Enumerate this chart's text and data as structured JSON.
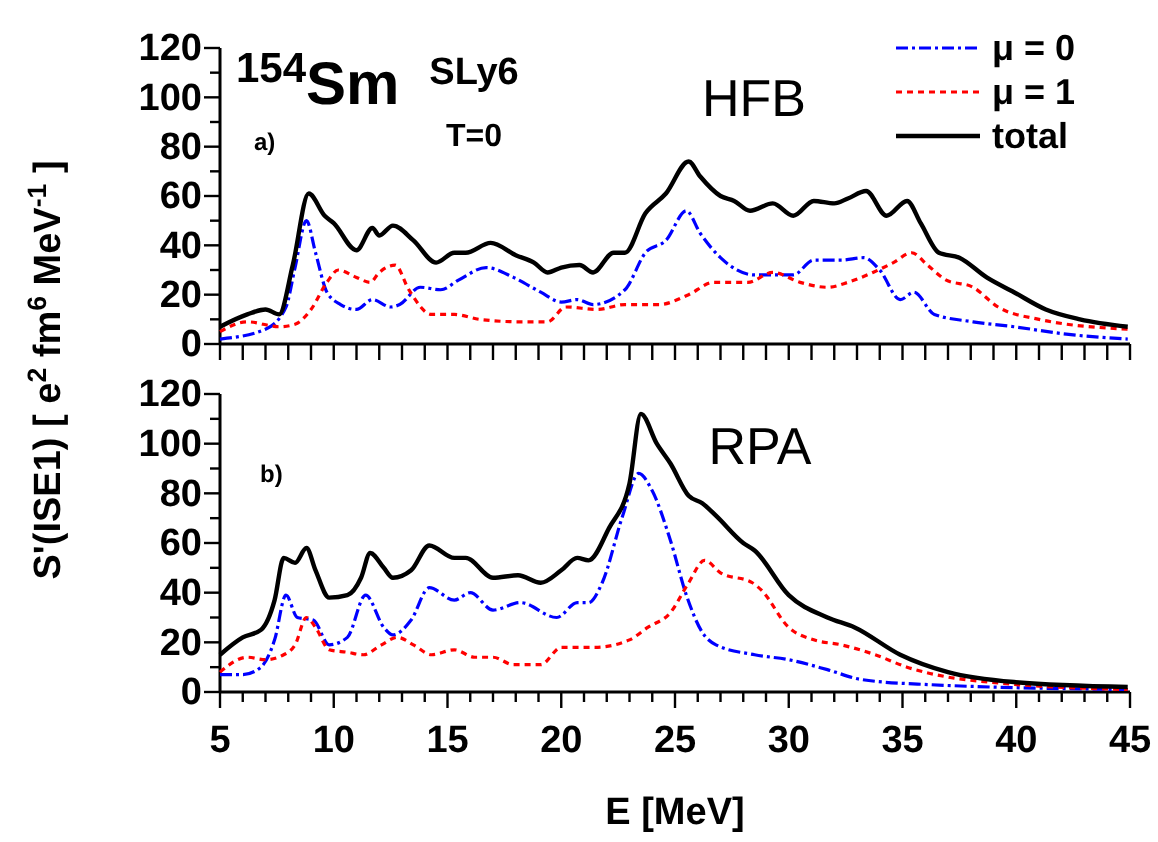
{
  "chart_data": [
    {
      "type": "line",
      "ylabel": "S'(ISE1)  [ e$^{2}$ fm$^{6}$ MeV$^{-1}$ ]",
      "annotations": [
        "$^{154}$Sm",
        "SLy6",
        "T=0",
        "HFB",
        "a)"
      ],
      "xlim": [
        5,
        45
      ],
      "xticks": [
        {
          "value": 5,
          "label": null
        },
        {
          "value": 6,
          "label": null
        },
        {
          "value": 7,
          "label": null
        },
        {
          "value": 8,
          "label": null
        },
        {
          "value": 9,
          "label": null
        },
        {
          "value": 10,
          "label": null
        },
        {
          "value": 11,
          "label": null
        },
        {
          "value": 12,
          "label": null
        },
        {
          "value": 13,
          "label": null
        },
        {
          "value": 14,
          "label": null
        },
        {
          "value": 15,
          "label": null
        },
        {
          "value": 16,
          "label": null
        },
        {
          "value": 17,
          "label": null
        },
        {
          "value": 18,
          "label": null
        },
        {
          "value": 19,
          "label": null
        },
        {
          "value": 20,
          "label": null
        },
        {
          "value": 21,
          "label": null
        },
        {
          "value": 22,
          "label": null
        },
        {
          "value": 23,
          "label": null
        },
        {
          "value": 24,
          "label": null
        },
        {
          "value": 25,
          "label": null
        },
        {
          "value": 26,
          "label": null
        },
        {
          "value": 27,
          "label": null
        },
        {
          "value": 28,
          "label": null
        },
        {
          "value": 29,
          "label": null
        },
        {
          "value": 30,
          "label": null
        },
        {
          "value": 31,
          "label": null
        },
        {
          "value": 32,
          "label": null
        },
        {
          "value": 33,
          "label": null
        },
        {
          "value": 34,
          "label": null
        },
        {
          "value": 35,
          "label": null
        },
        {
          "value": 36,
          "label": null
        },
        {
          "value": 37,
          "label": null
        },
        {
          "value": 38,
          "label": null
        },
        {
          "value": 39,
          "label": null
        },
        {
          "value": 40,
          "label": null
        },
        {
          "value": 41,
          "label": null
        },
        {
          "value": 42,
          "label": null
        },
        {
          "value": 43,
          "label": null
        },
        {
          "value": 44,
          "label": null
        },
        {
          "value": 45,
          "label": null
        }
      ],
      "ylim": [
        0,
        120
      ],
      "yticks": [
        0,
        {
          "value": 10,
          "label": null
        },
        20,
        {
          "value": 30,
          "label": null
        },
        40,
        {
          "value": 50,
          "label": null
        },
        60,
        {
          "value": 70,
          "label": null
        },
        80,
        {
          "value": 90,
          "label": null
        },
        100,
        {
          "value": 110,
          "label": null
        },
        120
      ],
      "tick_labels": "y",
      "grid": false,
      "legend": "top right",
      "marker": "none",
      "series": [
        {
          "name": "μ = 0",
          "color": "#0000ff",
          "line_style": "dashed",
          "x": [
            5,
            7,
            7.9,
            8.3,
            8.8,
            9.2,
            9.7,
            10.3,
            11,
            11.7,
            12.5,
            12.9,
            13.8,
            14.7,
            15.5,
            16.7,
            17.9,
            19.1,
            20,
            20.7,
            21.4,
            22.8,
            23.7,
            24.6,
            25.5,
            26.1,
            27,
            28.5,
            30.2,
            31.1,
            32.3,
            33.3,
            34,
            34.9,
            35.5,
            36.4,
            38.1,
            39.9,
            42.2,
            44.9
          ],
          "values": [
            2,
            6,
            15,
            31,
            50,
            37,
            21,
            16,
            14,
            18,
            15,
            16,
            23,
            22,
            26,
            31,
            27,
            21,
            17,
            18,
            16,
            22,
            37,
            42,
            54,
            45,
            35,
            28,
            28,
            34,
            34,
            35,
            30,
            18,
            21,
            12,
            9,
            7,
            4,
            2
          ]
        },
        {
          "name": "μ = 1",
          "color": "#ff0000",
          "line_style": "dotted",
          "x": [
            5,
            6.2,
            7.6,
            8.3,
            9,
            9.7,
            10.2,
            11,
            11.6,
            12,
            12.7,
            13.3,
            14.3,
            15.3,
            16.4,
            18.2,
            19.4,
            20.2,
            21.6,
            22.8,
            24.3,
            25.6,
            26.7,
            28.2,
            29.3,
            30.5,
            31.7,
            32.6,
            33.7,
            34.6,
            35.4,
            36.1,
            36.9,
            38.1,
            39.2,
            41,
            44.9
          ],
          "values": [
            5,
            9,
            7,
            8,
            14,
            25,
            30,
            27,
            25,
            29,
            32,
            22,
            12,
            12,
            10,
            9,
            9,
            15,
            14,
            16,
            16,
            20,
            25,
            25,
            29,
            25,
            23,
            25,
            29,
            33,
            37,
            32,
            26,
            23,
            15,
            10,
            6
          ]
        },
        {
          "name": "total",
          "color": "#000000",
          "line_style": "solid",
          "x": [
            5,
            6.2,
            7,
            7.6,
            8.2,
            8.9,
            9.6,
            10,
            11,
            11.7,
            12,
            12.6,
            13.5,
            14.5,
            15.3,
            15.8,
            16.9,
            18,
            18.8,
            19.4,
            20,
            20.8,
            21.4,
            22.3,
            22.8,
            23.7,
            24.6,
            25.6,
            26.1,
            27,
            27.6,
            28.3,
            29.3,
            30.2,
            31.1,
            32,
            32.6,
            33.4,
            34.3,
            35.2,
            35.8,
            36.6,
            37.5,
            38.7,
            39.9,
            41.3,
            42.8,
            44.9
          ],
          "values": [
            7,
            12,
            14,
            12,
            32,
            61,
            52,
            49,
            38,
            47,
            44,
            48,
            42,
            33,
            37,
            37,
            41,
            36,
            33,
            29,
            31,
            32,
            29,
            37,
            37,
            53,
            61,
            74,
            68,
            60,
            58,
            54,
            57,
            52,
            58,
            57,
            59,
            62,
            52,
            58,
            49,
            37,
            35,
            27,
            21,
            14,
            10,
            7
          ]
        }
      ]
    },
    {
      "type": "line",
      "xlabel": "E [MeV]",
      "annotations": [
        "RPA",
        "b)"
      ],
      "xlim": [
        5,
        45
      ],
      "xticks": [
        5,
        {
          "value": 6,
          "label": null
        },
        {
          "value": 7,
          "label": null
        },
        {
          "value": 8,
          "label": null
        },
        {
          "value": 9,
          "label": null
        },
        10,
        {
          "value": 11,
          "label": null
        },
        {
          "value": 12,
          "label": null
        },
        {
          "value": 13,
          "label": null
        },
        {
          "value": 14,
          "label": null
        },
        15,
        {
          "value": 16,
          "label": null
        },
        {
          "value": 17,
          "label": null
        },
        {
          "value": 18,
          "label": null
        },
        {
          "value": 19,
          "label": null
        },
        20,
        {
          "value": 21,
          "label": null
        },
        {
          "value": 22,
          "label": null
        },
        {
          "value": 23,
          "label": null
        },
        {
          "value": 24,
          "label": null
        },
        25,
        {
          "value": 26,
          "label": null
        },
        {
          "value": 27,
          "label": null
        },
        {
          "value": 28,
          "label": null
        },
        {
          "value": 29,
          "label": null
        },
        30,
        {
          "value": 31,
          "label": null
        },
        {
          "value": 32,
          "label": null
        },
        {
          "value": 33,
          "label": null
        },
        {
          "value": 34,
          "label": null
        },
        35,
        {
          "value": 36,
          "label": null
        },
        {
          "value": 37,
          "label": null
        },
        {
          "value": 38,
          "label": null
        },
        {
          "value": 39,
          "label": null
        },
        40,
        {
          "value": 41,
          "label": null
        },
        {
          "value": 42,
          "label": null
        },
        {
          "value": 43,
          "label": null
        },
        {
          "value": 44,
          "label": null
        },
        45
      ],
      "ylim": [
        0,
        120
      ],
      "yticks": [
        0,
        {
          "value": 10,
          "label": null
        },
        20,
        {
          "value": 30,
          "label": null
        },
        40,
        {
          "value": 50,
          "label": null
        },
        60,
        {
          "value": 70,
          "label": null
        },
        80,
        {
          "value": 90,
          "label": null
        },
        100,
        {
          "value": 110,
          "label": null
        },
        120
      ],
      "grid": false,
      "marker": "none",
      "series": [
        {
          "color": "#0000ff",
          "line_style": "dashed",
          "x": [
            5,
            6,
            6.8,
            7.4,
            7.9,
            8.4,
            9.1,
            9.8,
            10.6,
            11.4,
            12.2,
            12.6,
            13.4,
            14.2,
            15.3,
            16,
            17,
            18.2,
            19.8,
            20.7,
            21.2,
            21.8,
            22.7,
            23.4,
            24,
            24.8,
            25.5,
            26.2,
            26.8,
            28.5,
            30,
            31.7,
            33.2,
            36.1,
            44.9
          ],
          "values": [
            7,
            7,
            10,
            21,
            39,
            30,
            29,
            19,
            22,
            39,
            26,
            23,
            29,
            42,
            37,
            40,
            33,
            36,
            30,
            36,
            36,
            44,
            71,
            88,
            81,
            61,
            39,
            24,
            19,
            15,
            13,
            9,
            5,
            3,
            1
          ]
        },
        {
          "color": "#ff0000",
          "line_style": "dotted",
          "x": [
            5,
            6.2,
            7,
            7.8,
            8.3,
            8.8,
            9.2,
            9.8,
            10.6,
            11.3,
            12.1,
            12.8,
            13.5,
            14.3,
            15.3,
            16.2,
            17,
            17.9,
            19.1,
            20,
            21.5,
            23,
            23.8,
            24.8,
            25.6,
            26.3,
            27,
            28.4,
            28.8,
            30,
            31.1,
            32.3,
            33.8,
            35.2,
            37,
            38.8,
            44.9
          ],
          "values": [
            8,
            14,
            13,
            15,
            19,
            30,
            26,
            17,
            16,
            15,
            19,
            22,
            19,
            15,
            17,
            14,
            14,
            11,
            11,
            18,
            18,
            21,
            26,
            32,
            44,
            53,
            48,
            44,
            41,
            26,
            21,
            19,
            15,
            10,
            6,
            4,
            1
          ]
        },
        {
          "color": "#000000",
          "line_style": "solid",
          "x": [
            5,
            6,
            6.8,
            7.4,
            7.8,
            8.3,
            8.8,
            9.2,
            9.8,
            10.6,
            11.2,
            11.6,
            12.2,
            12.6,
            13.4,
            14.2,
            15.3,
            15.8,
            17,
            18.1,
            19.1,
            20,
            20.7,
            21.2,
            22.1,
            23,
            23.5,
            24.2,
            24.8,
            25.6,
            26.2,
            26.8,
            28,
            28.5,
            30,
            31.7,
            32.9,
            34.9,
            37,
            39.9,
            44.9
          ],
          "values": [
            15,
            22,
            25,
            37,
            54,
            52,
            58,
            49,
            38,
            39,
            46,
            56,
            50,
            46,
            49,
            59,
            54,
            54,
            46,
            47,
            44,
            49,
            54,
            53,
            66,
            84,
            112,
            100,
            92,
            79,
            76,
            71,
            60,
            57,
            39,
            30,
            26,
            15,
            8,
            4,
            2
          ]
        }
      ]
    }
  ]
}
